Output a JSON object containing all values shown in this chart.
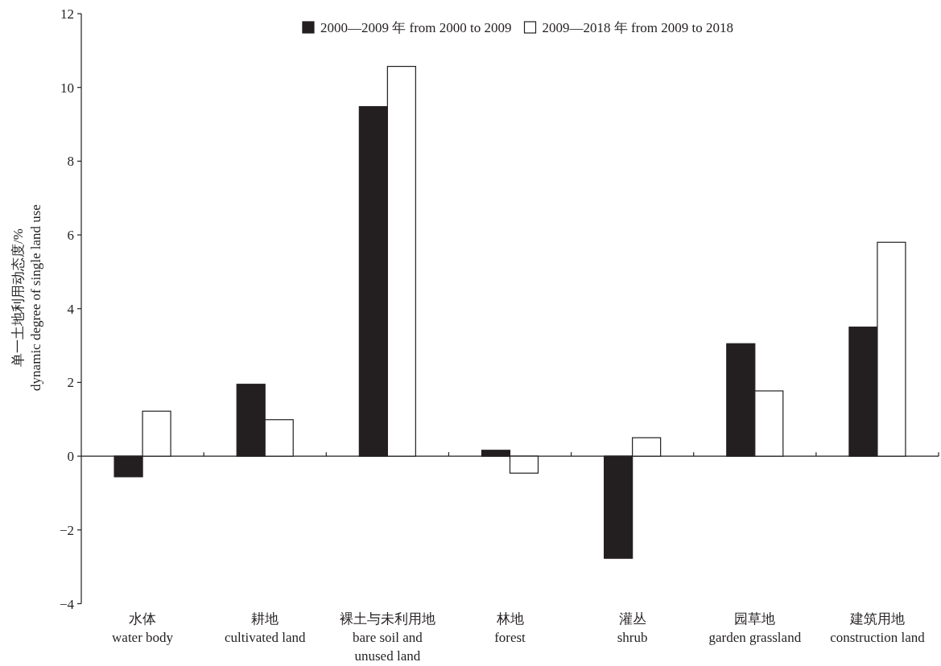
{
  "chart_data": {
    "type": "bar",
    "ylabel": "单一土地利用动态度/%\ndynamic degree of single land use",
    "categories": [
      "水体\nwater body",
      "耕地\ncultivated land",
      "裸土与未利用地\nbare soil and\nunused land",
      "林地\nforest",
      "灌丛\nshrub",
      "园草地\ngarden grassland",
      "建筑用地\nconstruction land"
    ],
    "series": [
      {
        "name": "2000—2009 年 from 2000 to 2009",
        "color": "#231f20",
        "values": [
          -0.56,
          1.95,
          9.48,
          0.16,
          -2.77,
          3.05,
          3.5
        ]
      },
      {
        "name": "2009—2018 年 from 2009 to 2018",
        "color": "#ffffff",
        "values": [
          1.22,
          0.99,
          10.57,
          -0.46,
          0.5,
          1.77,
          5.8
        ]
      }
    ],
    "ylim": [
      -4,
      12
    ],
    "yticks": [
      {
        "value": -4,
        "label": "−4"
      },
      {
        "value": -2,
        "label": "−2"
      },
      0,
      2,
      4,
      6,
      8,
      10,
      12
    ],
    "legend": "top"
  }
}
